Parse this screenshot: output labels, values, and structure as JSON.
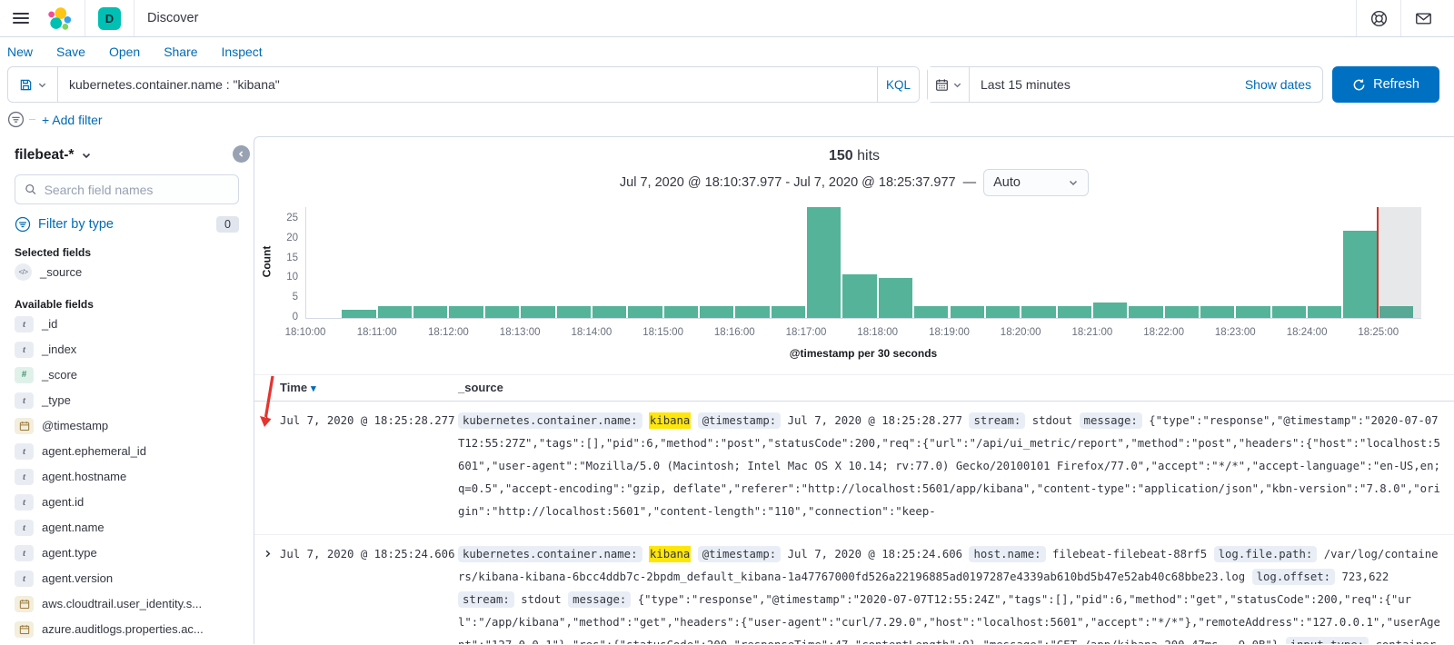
{
  "colors": {
    "accent_blue": "#006bb4",
    "refresh_button": "#0071c2",
    "space_badge_teal": "#00bfb3",
    "histogram_bar": "#54b399",
    "time_marker_red": "#d0342c",
    "highlight_yellow": "#ffe60a",
    "border_gray": "#d3dae6"
  },
  "navbar": {
    "space_badge": "D",
    "breadcrumb": "Discover"
  },
  "toolbar": {
    "menu": [
      {
        "label": "New"
      },
      {
        "label": "Save"
      },
      {
        "label": "Open"
      },
      {
        "label": "Share"
      },
      {
        "label": "Inspect"
      }
    ],
    "query": {
      "value": "kubernetes.container.name : \"kibana\"",
      "language": "KQL"
    },
    "timepicker": {
      "value": "Last 15 minutes",
      "show_dates_label": "Show dates",
      "refresh_label": "Refresh"
    },
    "add_filter_label": "+ Add filter"
  },
  "sidebar": {
    "index_pattern": "filebeat-*",
    "search_placeholder": "Search field names",
    "filter_by_type_label": "Filter by type",
    "filter_count": "0",
    "selected_heading": "Selected fields",
    "selected_fields": [
      {
        "name": "_source",
        "type": "source"
      }
    ],
    "available_heading": "Available fields",
    "available_fields": [
      {
        "name": "_id",
        "type": "string"
      },
      {
        "name": "_index",
        "type": "string"
      },
      {
        "name": "_score",
        "type": "number"
      },
      {
        "name": "_type",
        "type": "string"
      },
      {
        "name": "@timestamp",
        "type": "date"
      },
      {
        "name": "agent.ephemeral_id",
        "type": "string"
      },
      {
        "name": "agent.hostname",
        "type": "string"
      },
      {
        "name": "agent.id",
        "type": "string"
      },
      {
        "name": "agent.name",
        "type": "string"
      },
      {
        "name": "agent.type",
        "type": "string"
      },
      {
        "name": "agent.version",
        "type": "string"
      },
      {
        "name": "aws.cloudtrail.user_identity.s...",
        "type": "date"
      },
      {
        "name": "azure.auditlogs.properties.ac...",
        "type": "date"
      }
    ]
  },
  "main": {
    "hits_count": "150",
    "hits_label": "hits",
    "time_range": "Jul 7, 2020 @ 18:10:37.977 - Jul 7, 2020 @ 18:25:37.977",
    "range_separator": "—",
    "interval_label": "Auto",
    "chart_data": {
      "type": "bar",
      "title": "150 hits",
      "xlabel": "@timestamp per 30 seconds",
      "ylabel": "Count",
      "x_start": "18:10:00",
      "bucket_seconds": 30,
      "x_tick_labels": [
        "18:10:00",
        "18:11:00",
        "18:12:00",
        "18:13:00",
        "18:14:00",
        "18:15:00",
        "18:16:00",
        "18:17:00",
        "18:18:00",
        "18:19:00",
        "18:20:00",
        "18:21:00",
        "18:22:00",
        "18:23:00",
        "18:24:00",
        "18:25:00"
      ],
      "y_ticks": [
        0,
        5,
        10,
        15,
        20,
        25
      ],
      "ylim": [
        0,
        28
      ],
      "values": [
        0,
        2,
        3,
        3,
        3,
        3,
        3,
        3,
        3,
        3,
        3,
        3,
        3,
        3,
        28,
        11,
        10,
        3,
        3,
        3,
        3,
        3,
        4,
        3,
        3,
        3,
        3,
        3,
        3,
        22,
        3
      ],
      "partial_bucket_index": 30,
      "legend": "off",
      "grid": "off"
    },
    "table": {
      "columns": [
        "Time",
        "_source"
      ],
      "rows": [
        {
          "time": "Jul 7, 2020 @ 18:25:28.277",
          "segments": [
            {
              "t": "field",
              "v": "kubernetes.container.name:"
            },
            {
              "t": "hl",
              "v": "kibana"
            },
            {
              "t": "field",
              "v": "@timestamp:"
            },
            {
              "t": "text",
              "v": "Jul 7, 2020 @ 18:25:28.277"
            },
            {
              "t": "field",
              "v": "stream:"
            },
            {
              "t": "text",
              "v": "stdout"
            },
            {
              "t": "field",
              "v": "message:"
            },
            {
              "t": "text",
              "v": "{\"type\":\"response\",\"@timestamp\":\"2020-07-07T12:55:27Z\",\"tags\":[],\"pid\":6,\"method\":\"post\",\"statusCode\":200,\"req\":{\"url\":\"/api/ui_metric/report\",\"method\":\"post\",\"headers\":{\"host\":\"localhost:5601\",\"user-agent\":\"Mozilla/5.0 (Macintosh; Intel Mac OS X 10.14; rv:77.0) Gecko/20100101 Firefox/77.0\",\"accept\":\"*/*\",\"accept-language\":\"en-US,en;q=0.5\",\"accept-encoding\":\"gzip, deflate\",\"referer\":\"http://localhost:5601/app/kibana\",\"content-type\":\"application/json\",\"kbn-version\":\"7.8.0\",\"origin\":\"http://localhost:5601\",\"content-length\":\"110\",\"connection\":\"keep-"
            }
          ]
        },
        {
          "time": "Jul 7, 2020 @ 18:25:24.606",
          "segments": [
            {
              "t": "field",
              "v": "kubernetes.container.name:"
            },
            {
              "t": "hl",
              "v": "kibana"
            },
            {
              "t": "field",
              "v": "@timestamp:"
            },
            {
              "t": "text",
              "v": "Jul 7, 2020 @ 18:25:24.606"
            },
            {
              "t": "field",
              "v": "host.name:"
            },
            {
              "t": "text",
              "v": "filebeat-filebeat-88rf5"
            },
            {
              "t": "field",
              "v": "log.file.path:"
            },
            {
              "t": "text",
              "v": "/var/log/containers/kibana-kibana-6bcc4ddb7c-2bpdm_default_kibana-1a47767000fd526a22196885ad0197287e4339ab610bd5b47e52ab40c68bbe23.log"
            },
            {
              "t": "field",
              "v": "log.offset:"
            },
            {
              "t": "text",
              "v": "723,622"
            },
            {
              "t": "field",
              "v": "stream:"
            },
            {
              "t": "text",
              "v": "stdout"
            },
            {
              "t": "field",
              "v": "message:"
            },
            {
              "t": "text",
              "v": "{\"type\":\"response\",\"@timestamp\":\"2020-07-07T12:55:24Z\",\"tags\":[],\"pid\":6,\"method\":\"get\",\"statusCode\":200,\"req\":{\"url\":\"/app/kibana\",\"method\":\"get\",\"headers\":{\"user-agent\":\"curl/7.29.0\",\"host\":\"localhost:5601\",\"accept\":\"*/*\"},\"remoteAddress\":\"127.0.0.1\",\"userAgent\":\"127.0.0.1\"},\"res\":{\"statusCode\":200,\"responseTime\":47,\"contentLength\":9},\"message\":\"GET /app/kibana 200 47ms - 9.0B\"}"
            },
            {
              "t": "field",
              "v": "input.type:"
            },
            {
              "t": "text",
              "v": "container"
            }
          ]
        }
      ]
    }
  }
}
